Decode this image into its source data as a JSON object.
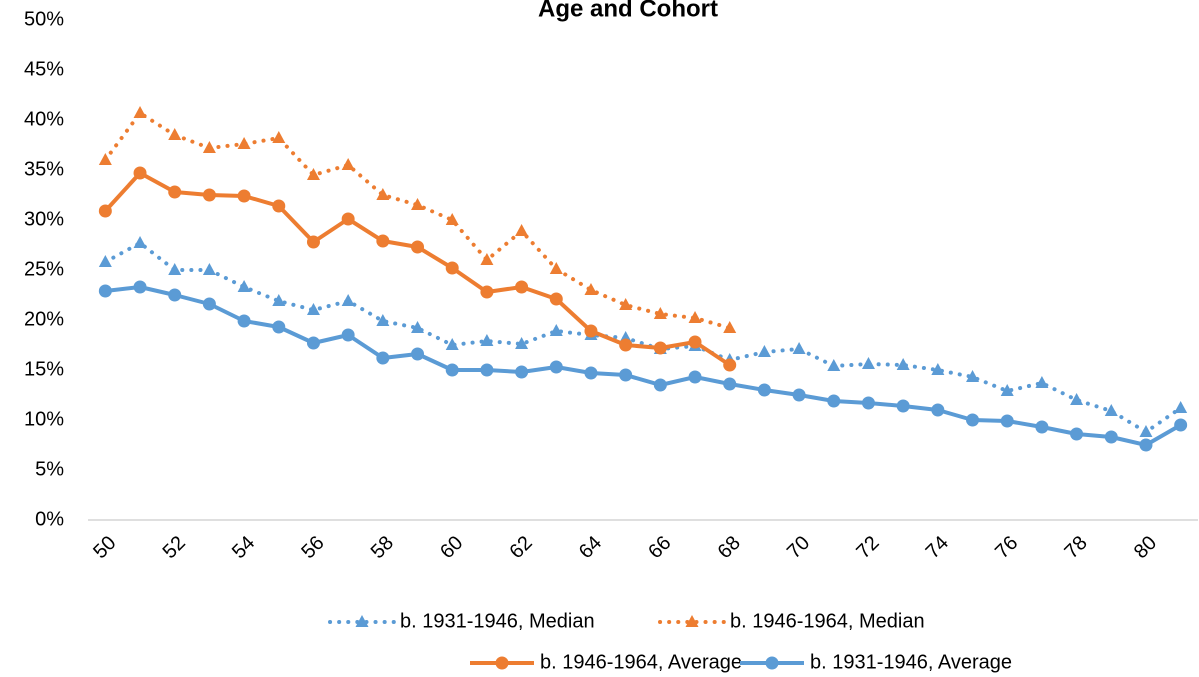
{
  "chart_data": {
    "type": "line",
    "title": "Age and Cohort",
    "categories": [
      "50",
      null,
      "52",
      null,
      "54",
      null,
      "56",
      null,
      "58",
      null,
      "60",
      null,
      "62",
      null,
      "64",
      null,
      "66",
      null,
      "68",
      null,
      "70",
      null,
      "72",
      null,
      "74",
      null,
      "76",
      null,
      "78",
      null,
      "80",
      null
    ],
    "ylim": [
      0,
      50
    ],
    "yticks": [
      {
        "value": 0,
        "label": "0%"
      },
      {
        "value": 5,
        "label": "5%"
      },
      {
        "value": 10,
        "label": "10%"
      },
      {
        "value": 15,
        "label": "15%"
      },
      {
        "value": 20,
        "label": "20%"
      },
      {
        "value": 25,
        "label": "25%"
      },
      {
        "value": 30,
        "label": "30%"
      },
      {
        "value": 35,
        "label": "35%"
      },
      {
        "value": 40,
        "label": "40%"
      },
      {
        "value": 45,
        "label": "45%"
      },
      {
        "value": 50,
        "label": "50%"
      }
    ],
    "grid": false,
    "series": [
      {
        "name": "b. 1931-1946, Median",
        "color": "#5b9bd5",
        "dash": "dotted",
        "marker": "triangle",
        "values": [
          25.8,
          27.7,
          25.0,
          25.0,
          23.3,
          21.9,
          21.0,
          21.9,
          19.9,
          19.2,
          17.5,
          17.9,
          17.6,
          18.9,
          18.5,
          18.2,
          17.1,
          17.4,
          16.0,
          16.8,
          17.1,
          15.4,
          15.6,
          15.5,
          15.0,
          14.3,
          12.9,
          13.7,
          12.0,
          10.9,
          8.8,
          11.2
        ]
      },
      {
        "name": "b. 1946-1964, Median",
        "color": "#ed7d31",
        "dash": "dotted",
        "marker": "triangle",
        "values": [
          36.0,
          40.7,
          38.5,
          37.2,
          37.6,
          38.2,
          34.5,
          35.5,
          32.5,
          31.5,
          30.0,
          26.0,
          28.9,
          25.1,
          23.0,
          21.5,
          20.6,
          20.2,
          19.2,
          null,
          null,
          null,
          null,
          null,
          null,
          null,
          null,
          null,
          null,
          null,
          null,
          null
        ]
      },
      {
        "name": "b. 1946-1964, Average",
        "color": "#ed7d31",
        "dash": "solid",
        "marker": "circle",
        "values": [
          30.9,
          34.7,
          32.8,
          32.5,
          32.4,
          31.4,
          27.8,
          30.1,
          27.9,
          27.3,
          25.2,
          22.8,
          23.3,
          22.1,
          18.9,
          17.5,
          17.2,
          17.8,
          15.5,
          null,
          null,
          null,
          null,
          null,
          null,
          null,
          null,
          null,
          null,
          null,
          null,
          null
        ]
      },
      {
        "name": "b. 1931-1946, Average",
        "color": "#5b9bd5",
        "dash": "solid",
        "marker": "circle",
        "values": [
          22.9,
          23.3,
          22.5,
          21.6,
          19.9,
          19.3,
          17.7,
          18.5,
          16.2,
          16.6,
          15.0,
          15.0,
          14.8,
          15.3,
          14.7,
          14.5,
          13.5,
          14.3,
          13.6,
          13.0,
          12.5,
          11.9,
          11.7,
          11.4,
          11.0,
          10.0,
          9.9,
          9.3,
          8.6,
          8.3,
          7.5,
          9.5
        ]
      }
    ]
  }
}
